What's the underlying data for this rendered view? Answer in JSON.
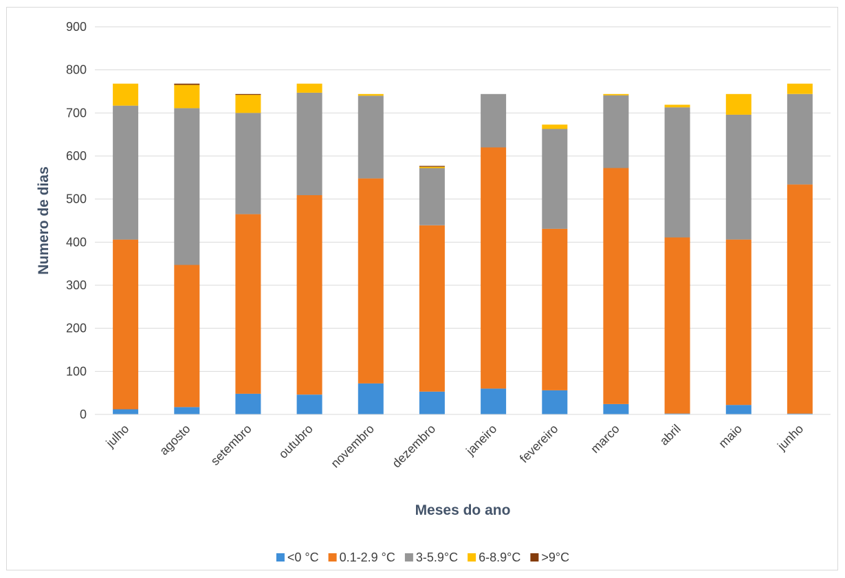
{
  "chart_data": {
    "type": "bar",
    "stacked": true,
    "title": "",
    "xlabel": "Meses do ano",
    "ylabel": "Numero de dias",
    "ylim": [
      0,
      900
    ],
    "yticks": [
      0,
      100,
      200,
      300,
      400,
      500,
      600,
      700,
      800,
      900
    ],
    "grid": true,
    "legend_position": "bottom",
    "categories": [
      "julho",
      "agosto",
      "setembro",
      "outubro",
      "novembro",
      "dezembro",
      "janeiro",
      "fevereiro",
      "marco",
      "abril",
      "maio",
      "junho"
    ],
    "series": [
      {
        "name": "<0 °C",
        "color": "#3f8fd8",
        "values": [
          12,
          17,
          48,
          46,
          72,
          53,
          60,
          56,
          24,
          2,
          22,
          2
        ]
      },
      {
        "name": "0.1-2.9 °C",
        "color": "#f07a1e",
        "values": [
          394,
          330,
          417,
          463,
          476,
          386,
          560,
          375,
          548,
          409,
          384,
          532
        ]
      },
      {
        "name": "3-5.9°C",
        "color": "#969696",
        "values": [
          311,
          364,
          235,
          238,
          192,
          133,
          124,
          232,
          169,
          302,
          290,
          210
        ]
      },
      {
        "name": "6-8.9°C",
        "color": "#ffc000",
        "values": [
          51,
          54,
          42,
          21,
          4,
          3,
          0,
          10,
          3,
          6,
          48,
          24
        ]
      },
      {
        "name": ">9°C",
        "color": "#843c0c",
        "values": [
          0,
          3,
          2,
          0,
          0,
          2,
          0,
          0,
          0,
          0,
          0,
          0
        ]
      }
    ]
  }
}
